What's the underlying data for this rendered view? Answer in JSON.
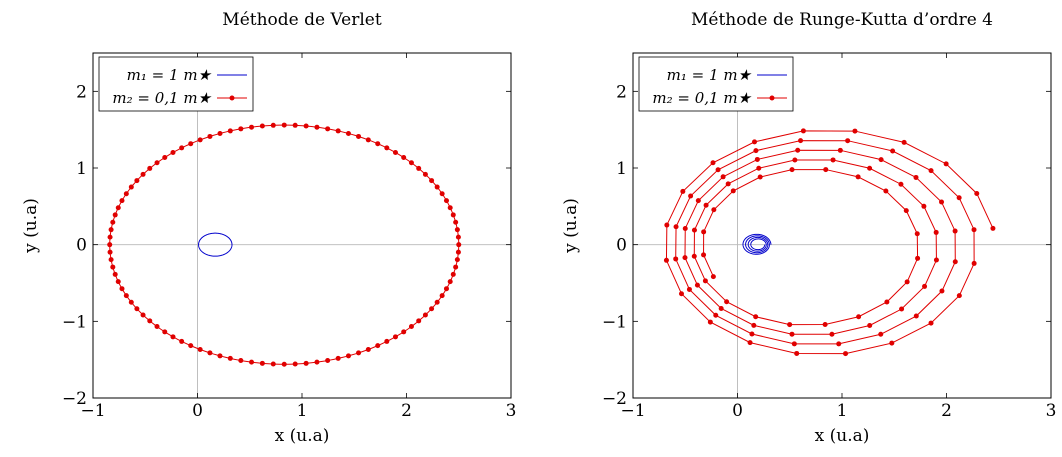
{
  "chart_data": [
    {
      "type": "line",
      "title": "Méthode de Verlet",
      "xlabel": "x (u.a)",
      "ylabel": "y (u.a)",
      "xlim": [
        -1,
        3
      ],
      "ylim": [
        -2,
        2.5
      ],
      "xticks": [
        "−1",
        "0",
        "1",
        "2",
        "3"
      ],
      "yticks": [
        "−2",
        "−1",
        "0",
        "1",
        "2"
      ],
      "grid_lines_at_zero": true,
      "legend_position": "top-left",
      "series": [
        {
          "name": "m₁ = 1 m★",
          "color": "#0000cc",
          "markers": false,
          "shape": "ellipse",
          "center": [
            0.17,
            0.0
          ],
          "radii": [
            0.16,
            0.15
          ],
          "turns": 1
        },
        {
          "name": "m₂ = 0,1 m★",
          "color": "#e00000",
          "markers": true,
          "shape": "ellipse",
          "center": [
            0.83,
            0.0
          ],
          "radii": [
            1.67,
            1.56
          ],
          "turns": 1,
          "marker_count": 100
        }
      ]
    },
    {
      "type": "line",
      "title": "Méthode de Runge-Kutta d’ordre 4",
      "xlabel": "x (u.a)",
      "ylabel": "y (u.a)",
      "xlim": [
        -1,
        3
      ],
      "ylim": [
        -2,
        2.5
      ],
      "xticks": [
        "−1",
        "0",
        "1",
        "2",
        "3"
      ],
      "yticks": [
        "−2",
        "−1",
        "0",
        "1",
        "2"
      ],
      "grid_lines_at_zero": true,
      "legend_position": "top-left",
      "series": [
        {
          "name": "m₁ = 1 m★",
          "color": "#0000cc",
          "markers": false,
          "shape": "spiral",
          "turns": 4,
          "start": {
            "center": [
              0.18,
              0.0
            ],
            "radii": [
              0.14,
              0.14
            ]
          },
          "end": {
            "center": [
              0.2,
              0.0
            ],
            "radii": [
              0.06,
              0.06
            ]
          }
        },
        {
          "name": "m₂ = 0,1 m★",
          "color": "#e00000",
          "markers": true,
          "shape": "spiral",
          "turns": 4.55,
          "points_per_turn": 20,
          "start": {
            "center": [
              0.86,
              0.0
            ],
            "radii": [
              1.6,
              1.53
            ],
            "phase_deg": 8
          },
          "end": {
            "center": [
              0.65,
              0.0
            ],
            "radii": [
              0.98,
              0.95
            ]
          }
        }
      ]
    }
  ]
}
